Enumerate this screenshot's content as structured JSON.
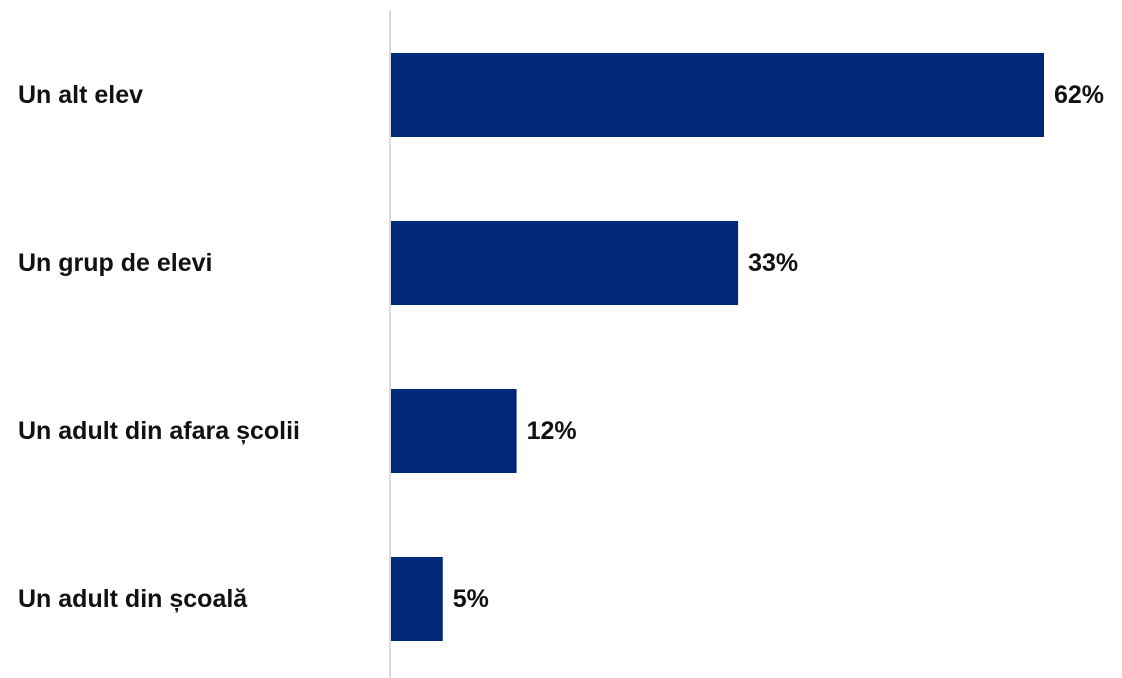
{
  "chart_data": {
    "type": "bar",
    "orientation": "horizontal",
    "categories": [
      "Un alt elev",
      "Un grup de elevi",
      "Un adult din afara școlii",
      "Un adult din școală"
    ],
    "values": [
      62,
      33,
      12,
      5
    ],
    "value_labels": [
      "62%",
      "33%",
      "12%",
      "5%"
    ],
    "unit": "%",
    "xlim": [
      0,
      62
    ],
    "grid": false,
    "legend": "none",
    "bar_color": "#002878"
  }
}
